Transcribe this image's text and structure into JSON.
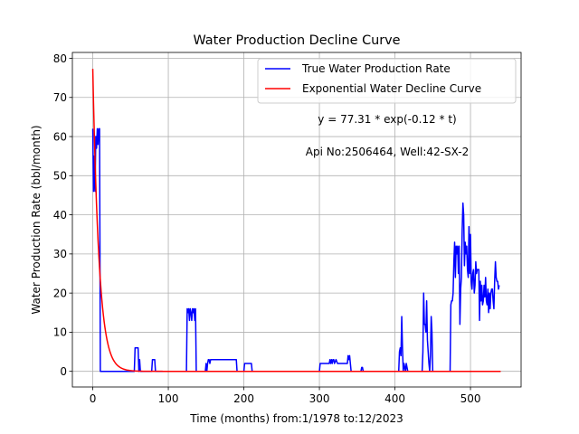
{
  "chart_data": {
    "type": "line",
    "title": "Water Production Decline Curve",
    "xlabel": "Time (months) from:1/1978 to:12/2023",
    "ylabel": "Water Production Rate (bbl/month)",
    "xlim": [
      -27,
      567
    ],
    "ylim": [
      -4,
      81.5
    ],
    "xticks": [
      0,
      100,
      200,
      300,
      400,
      500
    ],
    "yticks": [
      0,
      10,
      20,
      30,
      40,
      50,
      60,
      70,
      80
    ],
    "grid": true,
    "legend_position": "top-right",
    "legend": [
      "True Water Production Rate",
      "Exponential Water Decline Curve"
    ],
    "annotations": [
      "y = 77.31 * exp(-0.12 * t)",
      "Api No:2506464, Well:42-SX-2"
    ],
    "colors": {
      "true_rate": "#0000ff",
      "decline_curve": "#ff0000",
      "grid": "#b0b0b0",
      "axis": "#000000"
    },
    "series": [
      {
        "name": "True Water Production Rate",
        "color": "#0000ff",
        "x": [
          0,
          1,
          2,
          3,
          4,
          5,
          6,
          7,
          8,
          9,
          10,
          11,
          12,
          55,
          56,
          57,
          58,
          59,
          60,
          61,
          62,
          63,
          64,
          65,
          78,
          79,
          80,
          81,
          82,
          83,
          84,
          85,
          86,
          124,
          125,
          126,
          127,
          128,
          129,
          130,
          131,
          132,
          133,
          134,
          135,
          136,
          137,
          138,
          139,
          140,
          149,
          150,
          151,
          152,
          153,
          154,
          155,
          156,
          157,
          158,
          160,
          170,
          180,
          185,
          190,
          191,
          192,
          200,
          201,
          202,
          205,
          208,
          210,
          211,
          212,
          213,
          214,
          300,
          301,
          302,
          303,
          304,
          305,
          310,
          312,
          313,
          314,
          315,
          316,
          317,
          318,
          319,
          320,
          322,
          324,
          326,
          328,
          330,
          333,
          336,
          337,
          338,
          339,
          340,
          341,
          342,
          343,
          344,
          345,
          355,
          356,
          357,
          358,
          359,
          360,
          361,
          362,
          405,
          406,
          407,
          408,
          409,
          410,
          411,
          412,
          413,
          414,
          415,
          416,
          417,
          418,
          419,
          420,
          425,
          435,
          436,
          437,
          438,
          439,
          440,
          441,
          442,
          443,
          444,
          445,
          446,
          447,
          448,
          449,
          450,
          451,
          452,
          453,
          472,
          473,
          474,
          475,
          476,
          477,
          478,
          479,
          480,
          481,
          482,
          483,
          484,
          485,
          486,
          487,
          488,
          489,
          490,
          491,
          492,
          493,
          494,
          495,
          496,
          497,
          498,
          499,
          500,
          501,
          502,
          503,
          504,
          505,
          506,
          507,
          508,
          509,
          510,
          511,
          512,
          513,
          514,
          515,
          516,
          517,
          518,
          519,
          520,
          521,
          522,
          523,
          524,
          525,
          526,
          527,
          528,
          529,
          530,
          531,
          532,
          533,
          534,
          535,
          536,
          537,
          538
        ],
        "values": [
          62,
          46,
          55,
          46,
          60,
          57,
          62,
          58,
          62,
          62,
          0,
          0,
          0,
          0,
          6,
          6,
          6,
          6,
          6,
          0,
          3,
          0,
          0,
          0,
          0,
          3,
          3,
          3,
          3,
          0,
          0,
          0,
          0,
          0,
          16,
          15,
          16,
          13,
          16,
          15,
          13,
          16,
          15,
          16,
          13,
          16,
          0,
          0,
          0,
          0,
          0,
          2,
          0,
          2,
          3,
          3,
          2,
          3,
          3,
          3,
          3,
          3,
          3,
          3,
          3,
          0,
          0,
          0,
          2,
          2,
          2,
          2,
          2,
          0,
          0,
          0,
          0,
          0,
          2,
          2,
          2,
          2,
          2,
          2,
          2,
          2,
          3,
          2,
          3,
          2,
          3,
          3,
          2,
          3,
          2,
          2,
          2,
          2,
          2,
          2,
          2,
          4,
          3,
          4,
          2,
          0,
          0,
          0,
          0,
          0,
          1,
          1,
          0,
          0,
          0,
          0,
          0,
          0,
          5,
          6,
          4,
          14,
          6,
          0,
          2,
          1,
          0,
          2,
          1,
          0,
          0,
          0,
          0,
          0,
          0,
          0,
          5,
          20,
          12,
          12,
          10,
          18,
          8,
          5,
          2,
          0,
          4,
          14,
          10,
          0,
          0,
          0,
          0,
          0,
          0,
          17,
          18,
          18,
          20,
          28,
          33,
          24,
          32,
          30,
          32,
          25,
          32,
          12,
          21,
          24,
          36,
          43,
          40,
          27,
          33,
          30,
          32,
          26,
          24,
          37,
          25,
          35,
          23,
          21,
          25,
          26,
          20,
          22,
          28,
          25,
          26,
          26,
          26,
          13,
          23,
          18,
          22,
          17,
          18,
          22,
          19,
          24,
          18,
          17,
          21,
          15,
          20,
          16,
          20,
          21,
          21,
          18,
          16,
          23,
          28,
          24,
          23,
          23,
          21,
          22
        ]
      },
      {
        "name": "Exponential Water Decline Curve",
        "color": "#ff0000",
        "model": {
          "a": 77.31,
          "b": -0.12,
          "t_start": 0,
          "t_end": 540
        }
      }
    ]
  }
}
